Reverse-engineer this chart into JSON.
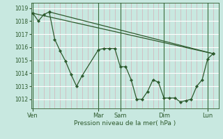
{
  "bg_color": "#c8e8e0",
  "plot_bg_color": "#c8e8e0",
  "grid_h_color": "#ffffff",
  "grid_v_minor_color": "#d4b0b8",
  "grid_v_major_color": "#3a6b3a",
  "line_color": "#2d5a2d",
  "marker_color": "#2d5a2d",
  "xlabel": "Pression niveau de la mer( hPa )",
  "ylim": [
    1011.3,
    1019.4
  ],
  "yticks": [
    1012,
    1013,
    1014,
    1015,
    1016,
    1017,
    1018,
    1019
  ],
  "day_labels": [
    "Ven",
    "Mar",
    "Sam",
    "Dim",
    "Lun"
  ],
  "day_x": [
    0,
    12,
    16,
    24,
    32
  ],
  "xlim": [
    -0.3,
    34.0
  ],
  "series_main": [
    [
      0,
      1018.6
    ],
    [
      1,
      1018.0
    ],
    [
      2,
      1018.5
    ],
    [
      3,
      1018.7
    ],
    [
      4,
      1016.6
    ],
    [
      5,
      1015.7
    ],
    [
      6,
      1014.9
    ],
    [
      7,
      1013.9
    ],
    [
      8,
      1013.0
    ],
    [
      9,
      1013.8
    ],
    [
      12,
      1015.8
    ],
    [
      13,
      1015.9
    ],
    [
      14,
      1015.9
    ],
    [
      15,
      1015.9
    ],
    [
      16,
      1014.5
    ],
    [
      17,
      1014.5
    ],
    [
      18,
      1013.5
    ],
    [
      19,
      1012.0
    ],
    [
      20,
      1012.0
    ],
    [
      21,
      1012.6
    ],
    [
      22,
      1013.5
    ],
    [
      23,
      1013.3
    ],
    [
      24,
      1012.1
    ],
    [
      25,
      1012.1
    ],
    [
      26,
      1012.1
    ],
    [
      27,
      1011.8
    ],
    [
      28,
      1011.9
    ],
    [
      29,
      1012.0
    ],
    [
      30,
      1013.0
    ],
    [
      31,
      1013.5
    ],
    [
      32,
      1015.1
    ],
    [
      33,
      1015.5
    ]
  ],
  "series_diag1": [
    [
      0,
      1018.6
    ],
    [
      33,
      1015.5
    ]
  ],
  "series_diag2": [
    [
      3,
      1018.7
    ],
    [
      33,
      1015.5
    ]
  ],
  "minor_xticks_step": 1,
  "total_x": 33
}
